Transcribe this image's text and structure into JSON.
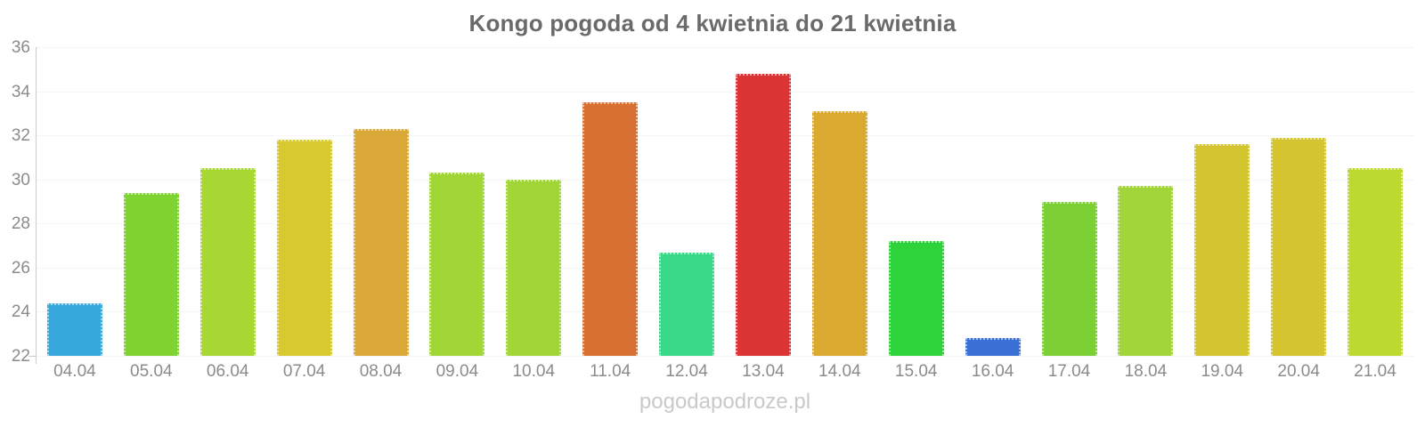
{
  "title": "Kongo pogoda od 4 kwietnia do 21 kwietnia",
  "watermark": "pogodapodroze.pl",
  "colors": {
    "background": "#ffffff",
    "title_text": "#6a6a6a",
    "axis_label_text": "#8b8b8b",
    "axis_line": "#cccccc",
    "gridline": "#ececec",
    "watermark_text": "#c9c9c9"
  },
  "chart_data": {
    "type": "bar",
    "title": "Kongo pogoda od 4 kwietnia do 21 kwietnia",
    "xlabel": "",
    "ylabel": "",
    "ylim": [
      22,
      36
    ],
    "yticks": [
      22,
      24,
      26,
      28,
      30,
      32,
      34,
      36
    ],
    "grid": "horizontal-dotted",
    "legend": false,
    "categories": [
      "04.04",
      "05.04",
      "06.04",
      "07.04",
      "08.04",
      "09.04",
      "10.04",
      "11.04",
      "12.04",
      "13.04",
      "14.04",
      "15.04",
      "16.04",
      "17.04",
      "18.04",
      "19.04",
      "20.04",
      "21.04"
    ],
    "values": [
      24.4,
      29.4,
      30.5,
      31.8,
      32.3,
      30.3,
      30.0,
      33.5,
      26.7,
      34.8,
      33.1,
      27.2,
      22.8,
      29.0,
      29.7,
      31.6,
      31.9,
      30.5
    ],
    "bar_colors": [
      "#38a9dc",
      "#7ed331",
      "#a6d732",
      "#d7ca30",
      "#d9a837",
      "#a0d636",
      "#a0d636",
      "#d87031",
      "#38da8a",
      "#da3434",
      "#d9a930",
      "#2ed33c",
      "#3b71d6",
      "#7ccf35",
      "#a2d53a",
      "#d3c52f",
      "#d5c530",
      "#bcd92f"
    ]
  }
}
